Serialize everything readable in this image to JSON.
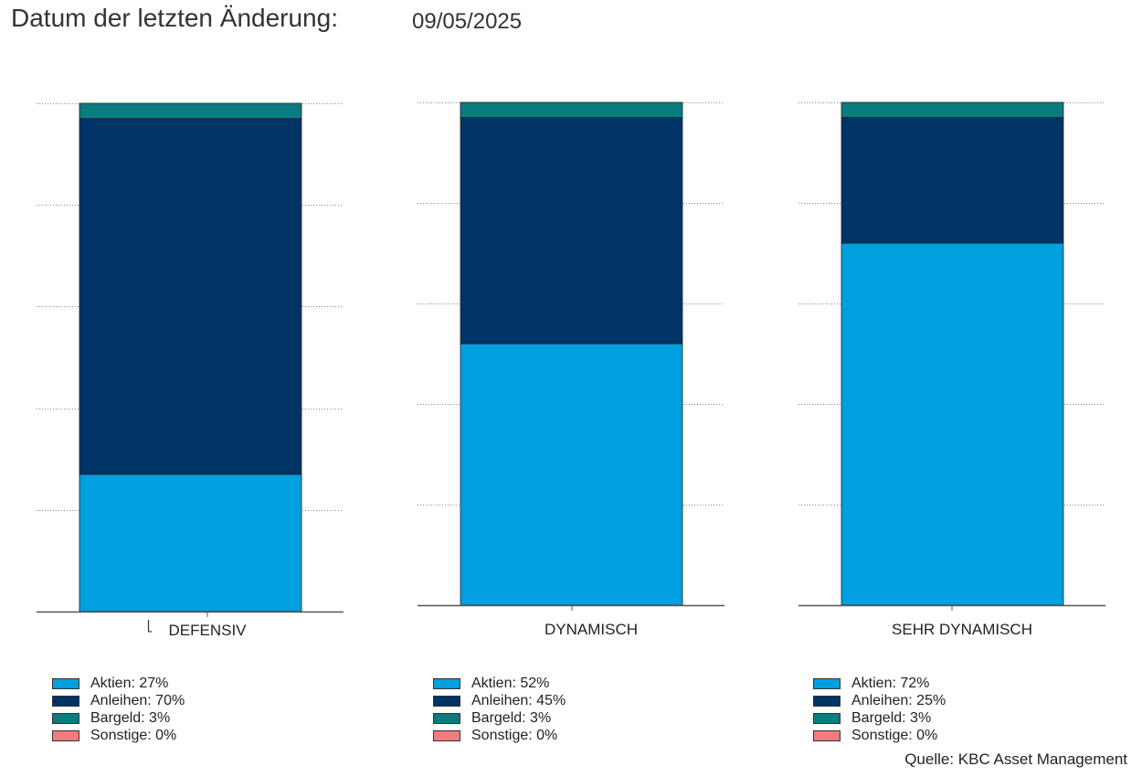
{
  "header": {
    "label": "Datum der letzten Änderung:",
    "date": "09/05/2025"
  },
  "source": "Quelle: KBC Asset Management",
  "colors": {
    "Aktien": "#009FE0",
    "Anleihen": "#003366",
    "Bargeld": "#0A7B7E",
    "Sonstige": "#F07C80"
  },
  "chart_data": [
    {
      "type": "bar",
      "stacked": true,
      "categories": [
        "DEFENSIV"
      ],
      "ylim": [
        0,
        100
      ],
      "grid": true,
      "series": [
        {
          "name": "Aktien",
          "values": [
            27
          ]
        },
        {
          "name": "Anleihen",
          "values": [
            70
          ]
        },
        {
          "name": "Bargeld",
          "values": [
            3
          ]
        },
        {
          "name": "Sonstige",
          "values": [
            0
          ]
        }
      ],
      "legend": [
        "Aktien: 27%",
        "Anleihen: 70%",
        "Bargeld: 3%",
        "Sonstige: 0%"
      ]
    },
    {
      "type": "bar",
      "stacked": true,
      "categories": [
        "DYNAMISCH"
      ],
      "ylim": [
        0,
        100
      ],
      "grid": true,
      "series": [
        {
          "name": "Aktien",
          "values": [
            52
          ]
        },
        {
          "name": "Anleihen",
          "values": [
            45
          ]
        },
        {
          "name": "Bargeld",
          "values": [
            3
          ]
        },
        {
          "name": "Sonstige",
          "values": [
            0
          ]
        }
      ],
      "legend": [
        "Aktien: 52%",
        "Anleihen: 45%",
        "Bargeld: 3%",
        "Sonstige: 0%"
      ]
    },
    {
      "type": "bar",
      "stacked": true,
      "categories": [
        "SEHR DYNAMISCH"
      ],
      "ylim": [
        0,
        100
      ],
      "grid": true,
      "series": [
        {
          "name": "Aktien",
          "values": [
            72
          ]
        },
        {
          "name": "Anleihen",
          "values": [
            25
          ]
        },
        {
          "name": "Bargeld",
          "values": [
            3
          ]
        },
        {
          "name": "Sonstige",
          "values": [
            0
          ]
        }
      ],
      "legend": [
        "Aktien: 72%",
        "Anleihen: 25%",
        "Bargeld: 3%",
        "Sonstige: 0%"
      ]
    }
  ]
}
